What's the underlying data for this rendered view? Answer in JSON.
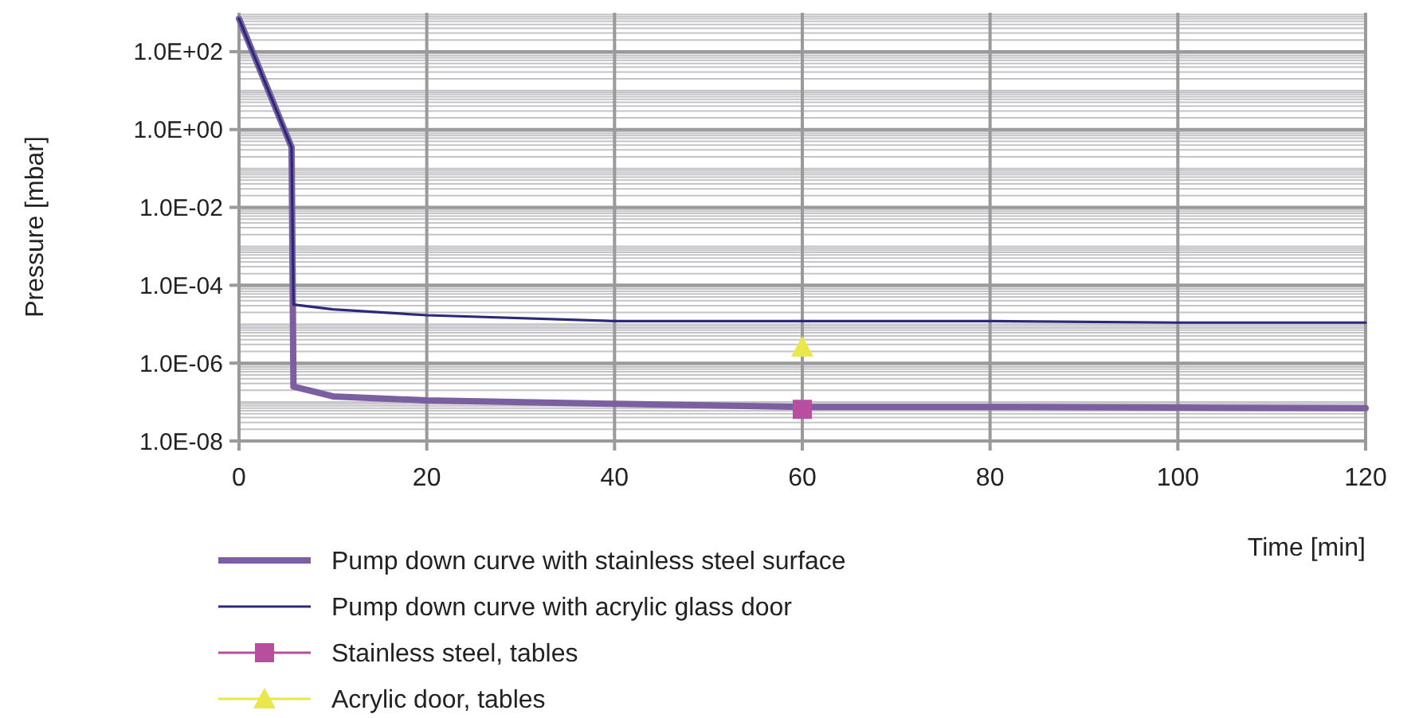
{
  "chart_data": {
    "type": "line",
    "xlabel": "Time [min]",
    "ylabel": "Pressure [mbar]",
    "log": "y",
    "grid": true,
    "legend": "bottom left",
    "xlim": [
      0,
      120
    ],
    "xticks": [
      0,
      20,
      40,
      60,
      80,
      100,
      120
    ],
    "ylim": [
      1e-08,
      1000
    ],
    "yticks": [
      {
        "value": 1e-08,
        "label": "1.0E-08"
      },
      {
        "value": 1e-06,
        "label": "1.0E-06"
      },
      {
        "value": 0.0001,
        "label": "1.0E-04"
      },
      {
        "value": 0.01,
        "label": "1.0E-02"
      },
      {
        "value": 1,
        "label": "1.0E+00"
      },
      {
        "value": 100,
        "label": "1.0E+02"
      }
    ],
    "series": [
      {
        "name": "Pump down curve with stainless steel surface",
        "color": "#7b5fa0",
        "x": [
          0,
          5.6,
          5.8,
          10,
          20,
          40,
          60,
          80,
          100,
          120
        ],
        "values": [
          700,
          0.35,
          2.5e-07,
          1.4e-07,
          1.1e-07,
          9e-08,
          7.5e-08,
          7.5e-08,
          7.2e-08,
          7e-08
        ]
      },
      {
        "name": "Pump down curve with acrylic glass door",
        "color": "#2a2a7a",
        "x": [
          0,
          5.6,
          5.8,
          10,
          20,
          40,
          60,
          80,
          100,
          120
        ],
        "values": [
          700,
          0.35,
          3.2e-05,
          2.4e-05,
          1.7e-05,
          1.2e-05,
          1.2e-05,
          1.2e-05,
          1.1e-05,
          1.1e-05
        ]
      },
      {
        "name": "Stainless steel, tables",
        "type": "scatter",
        "marker": "square",
        "color": "#b84ea0",
        "x": [
          60
        ],
        "values": [
          6.5e-08
        ]
      },
      {
        "name": "Acrylic door, tables",
        "type": "scatter",
        "marker": "triangle",
        "color": "#e8e84a",
        "x": [
          60
        ],
        "values": [
          2.6e-06
        ]
      }
    ]
  }
}
